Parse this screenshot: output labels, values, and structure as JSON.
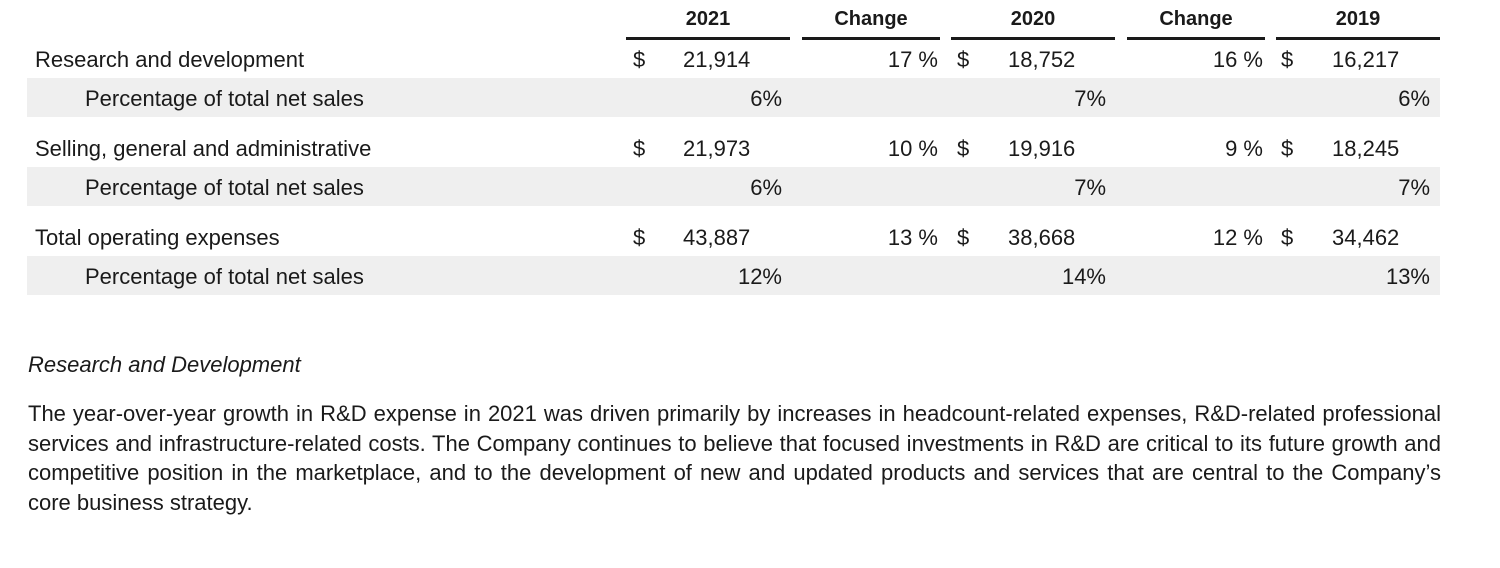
{
  "columns": {
    "year_2021": "2021",
    "change_1": "Change",
    "year_2020": "2020",
    "change_2": "Change",
    "year_2019": "2019"
  },
  "rows": [
    {
      "label": "Research and development",
      "cur1": "$",
      "v2021": "21,914",
      "change1": "17 %",
      "cur2": "$",
      "v2020": "18,752",
      "change2": "16 %",
      "cur3": "$",
      "v2019": "16,217"
    },
    {
      "label": "Percentage of total net sales",
      "p2021": "6%",
      "p2020": "7%",
      "p2019": "6%"
    },
    {
      "label": "Selling, general and administrative",
      "cur1": "$",
      "v2021": "21,973",
      "change1": "10 %",
      "cur2": "$",
      "v2020": "19,916",
      "change2": "9 %",
      "cur3": "$",
      "v2019": "18,245"
    },
    {
      "label": "Percentage of total net sales",
      "p2021": "6%",
      "p2020": "7%",
      "p2019": "7%"
    },
    {
      "label": "Total operating expenses",
      "cur1": "$",
      "v2021": "43,887",
      "change1": "13 %",
      "cur2": "$",
      "v2020": "38,668",
      "change2": "12 %",
      "cur3": "$",
      "v2019": "34,462"
    },
    {
      "label": "Percentage of total net sales",
      "p2021": "12%",
      "p2020": "14%",
      "p2019": "13%"
    }
  ],
  "section": {
    "title": "Research and Development",
    "paragraph": "The year-over-year growth in R&D expense in 2021 was driven primarily by increases in headcount-related expenses, R&D-related professional services and infrastructure-related costs. The Company continues to believe that focused investments in R&D are critical to its future growth and competitive position in the marketplace, and to the development of new and updated products and services that are central to the Company’s core business strategy."
  }
}
